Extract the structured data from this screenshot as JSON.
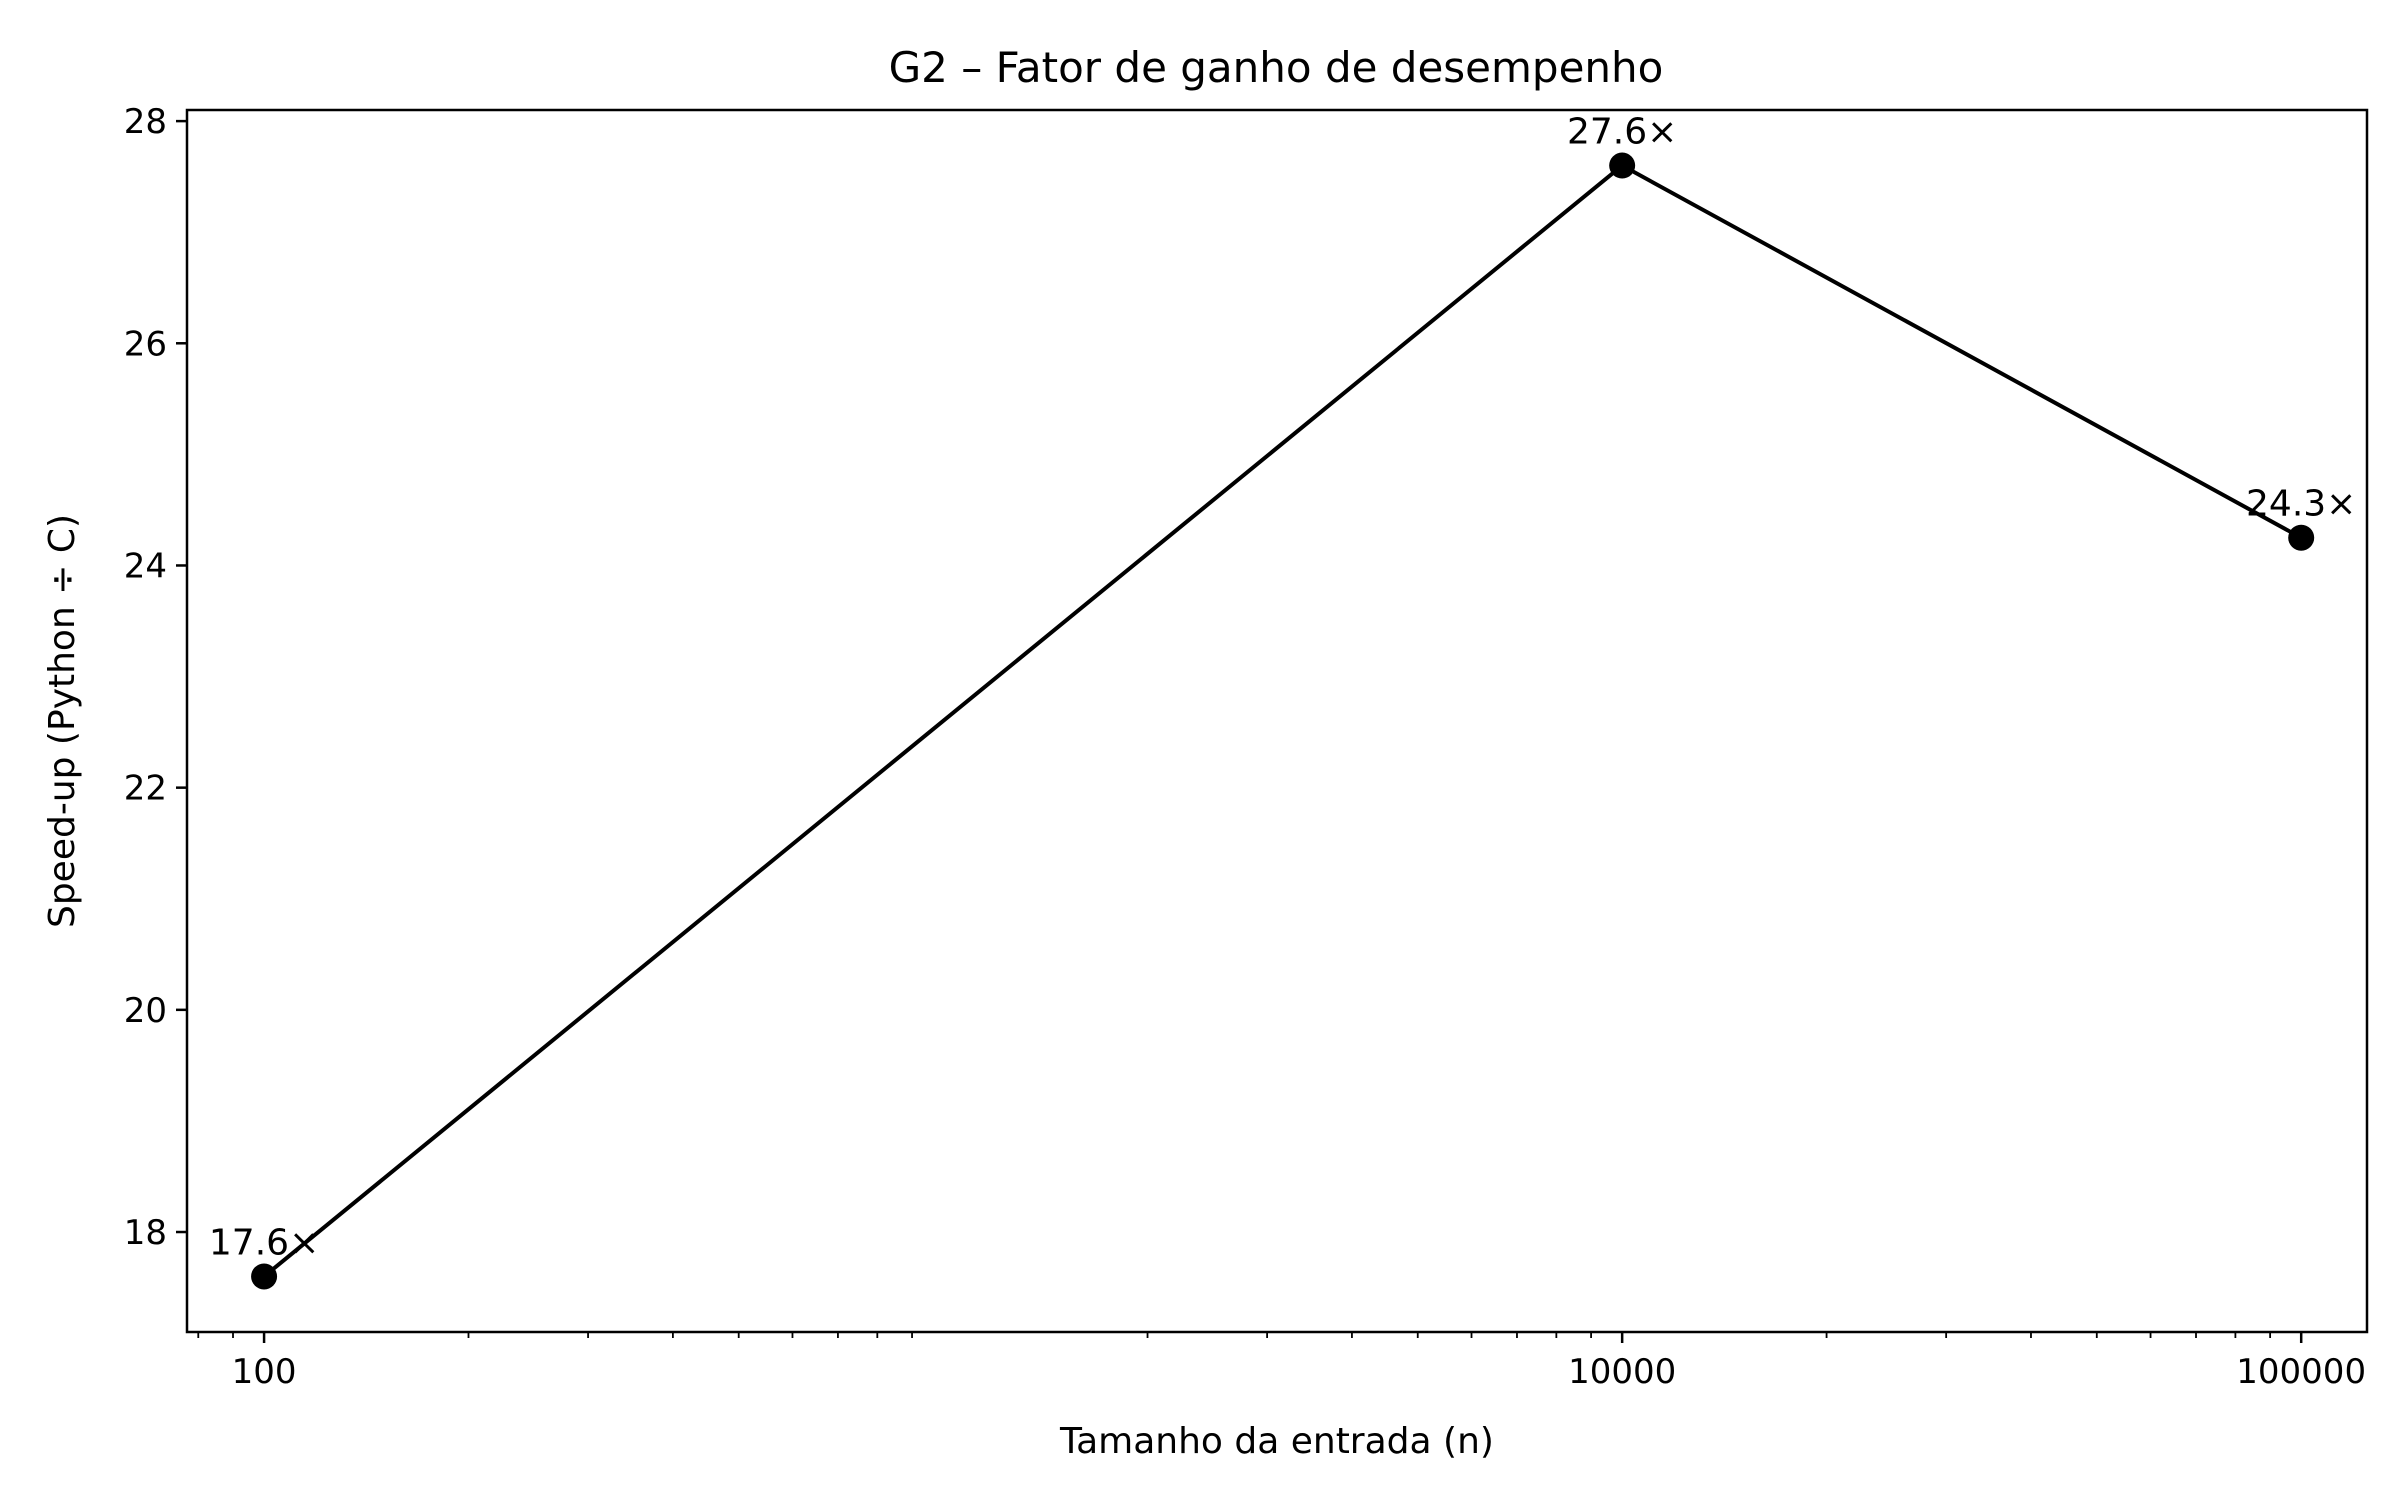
{
  "chart_data": {
    "type": "line",
    "title": "G2 – Fator de ganho de desempenho",
    "xlabel": "Tamanho da entrada (n)",
    "ylabel": "Speed-up (Python ÷ C)",
    "x_scale": "log",
    "xlim": [
      77,
      125000
    ],
    "ylim": [
      17.1,
      28.1
    ],
    "x_ticks": [
      {
        "value": 100,
        "label": "100"
      },
      {
        "value": 10000,
        "label": "10000"
      },
      {
        "value": 100000,
        "label": "100000"
      }
    ],
    "y_ticks": [
      {
        "value": 18,
        "label": "18"
      },
      {
        "value": 20,
        "label": "20"
      },
      {
        "value": 22,
        "label": "22"
      },
      {
        "value": 24,
        "label": "24"
      },
      {
        "value": 26,
        "label": "26"
      },
      {
        "value": 28,
        "label": "28"
      }
    ],
    "grid": false,
    "color": "#000000",
    "series": [
      {
        "x": [
          100,
          10000,
          100000
        ],
        "values": [
          17.6,
          27.6,
          24.25
        ],
        "labels": [
          "17.6×",
          "27.6×",
          "24.3×"
        ]
      }
    ]
  }
}
